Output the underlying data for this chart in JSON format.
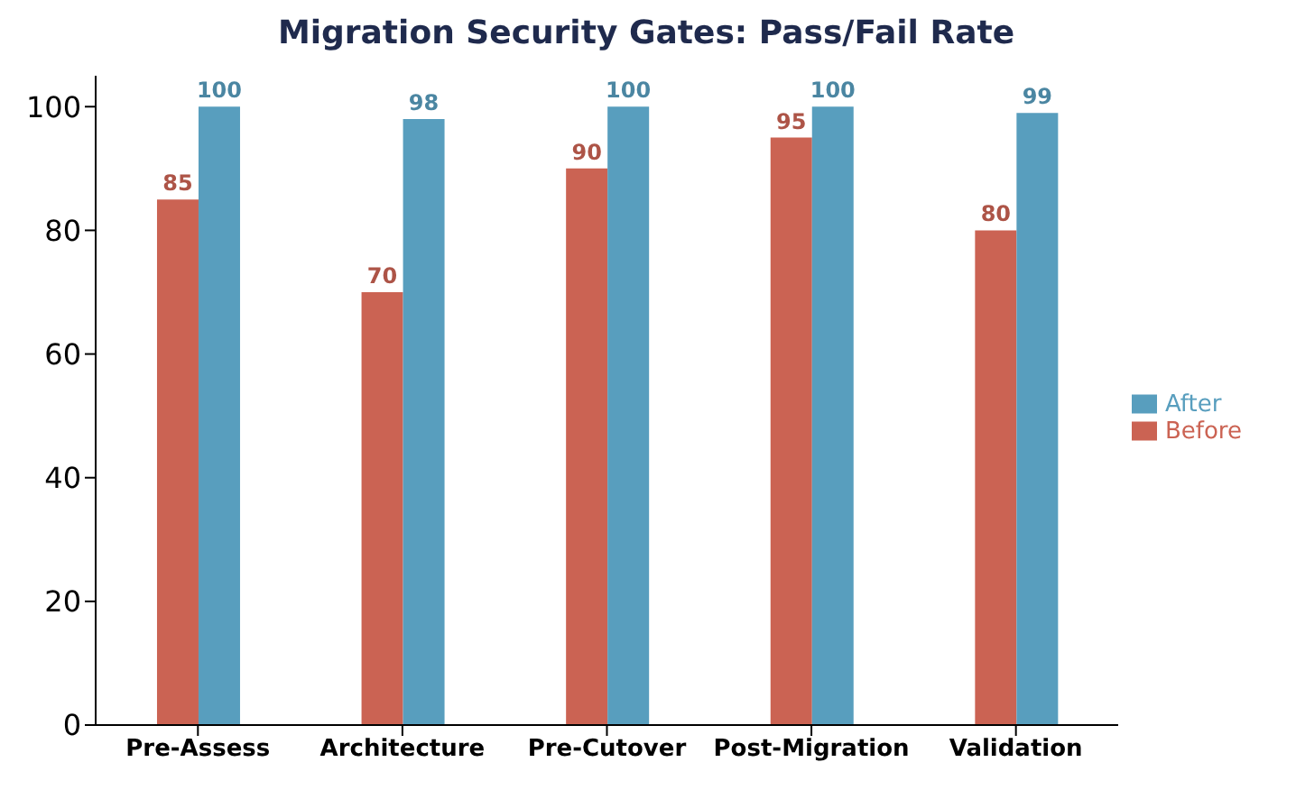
{
  "chart_data": {
    "type": "bar",
    "title": "Migration Security Gates: Pass/Fail Rate",
    "categories": [
      "Pre-Assess",
      "Architecture",
      "Pre-Cutover",
      "Post-Migration",
      "Validation"
    ],
    "series": [
      {
        "name": "Before",
        "color": "#cb6353",
        "values": [
          85,
          70,
          90,
          95,
          80
        ]
      },
      {
        "name": "After",
        "color": "#589ebe",
        "values": [
          100,
          98,
          100,
          100,
          99
        ]
      }
    ],
    "ylim": [
      0,
      105
    ],
    "yticks": [
      0,
      20,
      40,
      60,
      80,
      100
    ],
    "grid": false,
    "legend": "right",
    "data_labels": true
  }
}
